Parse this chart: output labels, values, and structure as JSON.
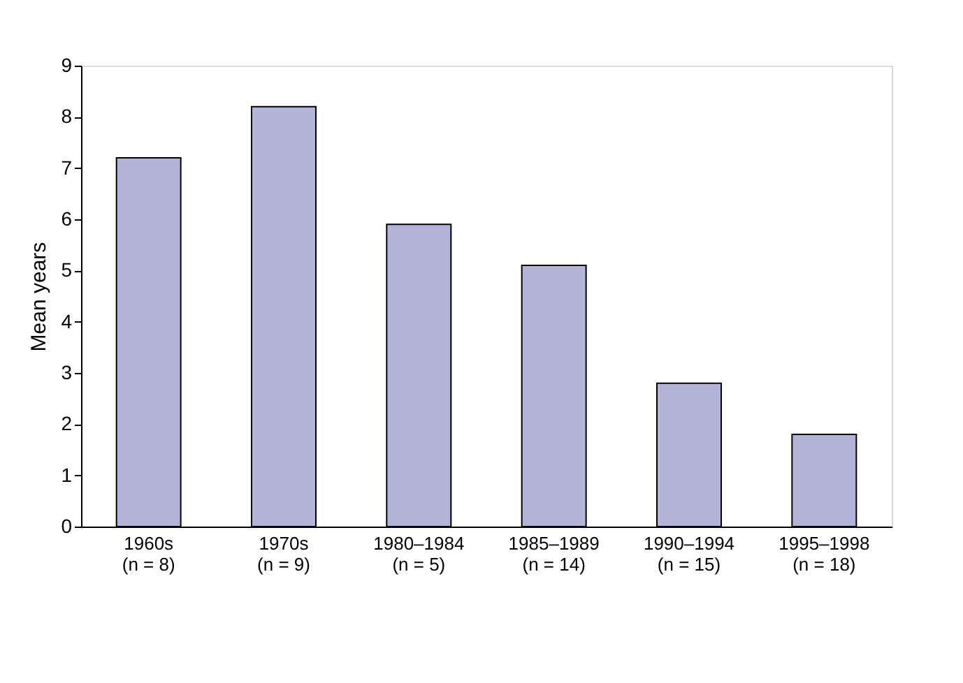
{
  "chart_data": {
    "type": "bar",
    "ylabel": "Mean years",
    "categories": [
      "1960s\n(n = 8)",
      "1970s\n(n = 9)",
      "1980–1984\n(n = 5)",
      "1985–1989\n(n = 14)",
      "1990–1994\n(n = 15)",
      "1995–1998\n(n = 18)"
    ],
    "values": [
      7.2,
      8.2,
      5.9,
      5.1,
      2.8,
      1.8
    ],
    "color": "#b4b4d9",
    "ylim": [
      0,
      9
    ],
    "yticks": [
      0,
      1,
      2,
      3,
      4,
      5,
      6,
      7,
      8,
      9
    ],
    "grid": false
  }
}
